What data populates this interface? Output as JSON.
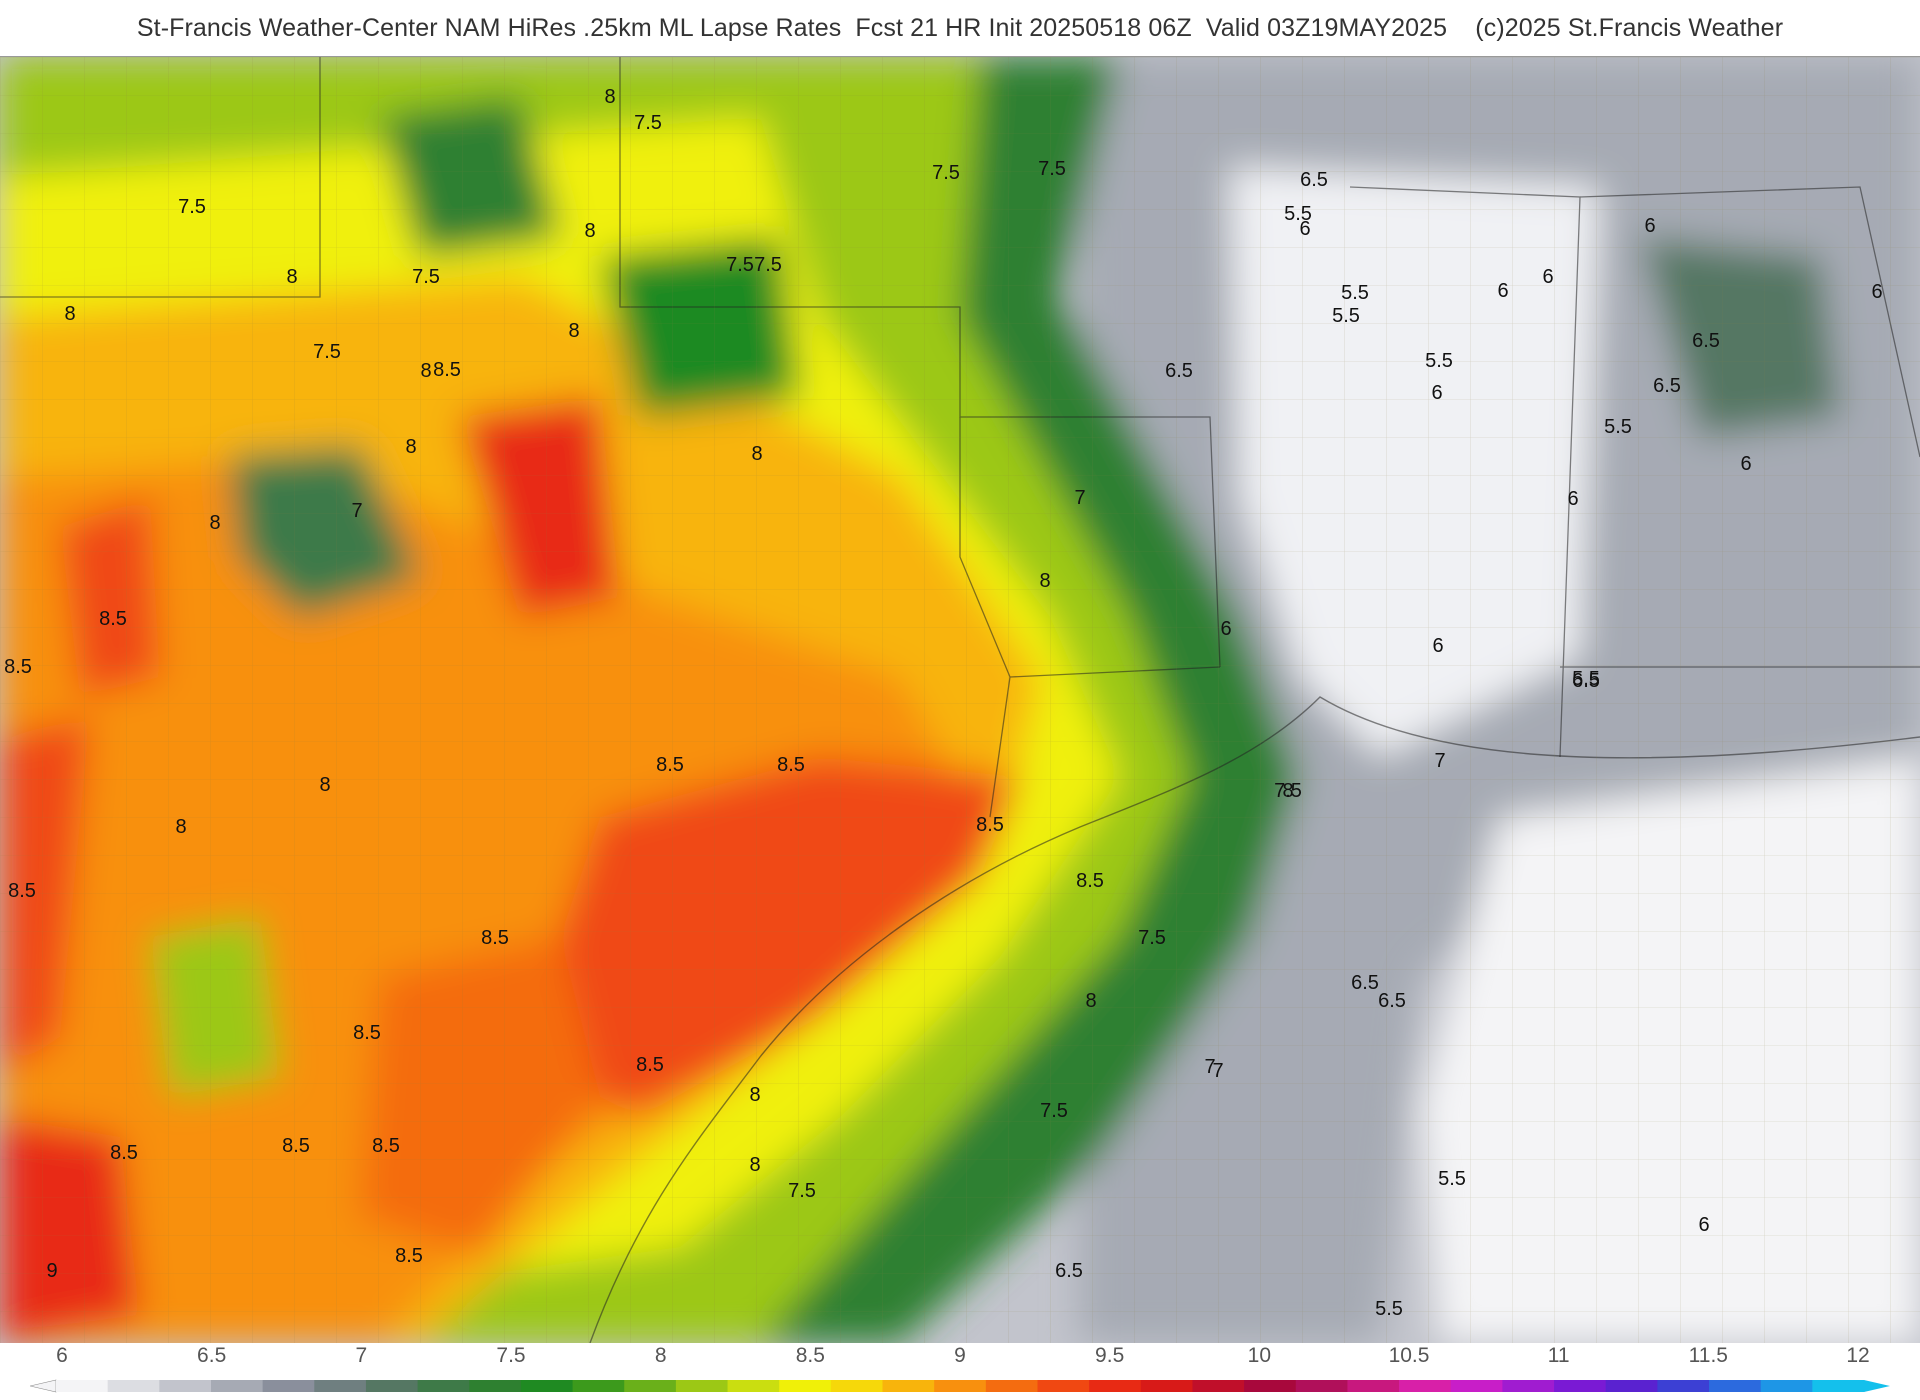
{
  "header": {
    "title": "St-Francis Weather-Center NAM HiRes .25km ML Lapse Rates  Fcst 21 HR Init 20250518 06Z  Valid 03Z19MAY2025    (c)2025 St.Francis Weather"
  },
  "map": {
    "contour_labels": [
      "8",
      "7.5",
      "7.5",
      "8",
      "7.5",
      "7.5",
      "7.5",
      "8",
      "7.5",
      "7.5",
      "8",
      "7.5",
      "8",
      "8.5",
      "8",
      "8",
      "7",
      "8",
      "8",
      "8.5",
      "8.5",
      "8",
      "8",
      "8.5",
      "8.5",
      "8",
      "8.5",
      "8.5",
      "8.5",
      "8",
      "7.5",
      "8.5",
      "8.5",
      "8.5",
      "8",
      "8.5",
      "8.5",
      "8.5",
      "8.5",
      "9",
      "7.5",
      "8",
      "6.5",
      "7",
      "7.5",
      "7",
      "6.5",
      "6.5",
      "6",
      "5.5",
      "6",
      "6.5",
      "5.5",
      "5.5",
      "6",
      "5.5",
      "6",
      "6",
      "6.5",
      "6.5",
      "6",
      "5.5",
      "6",
      "6",
      "6.5",
      "7",
      "6",
      "6.5",
      "5.5",
      "6",
      "5.5",
      "7.5",
      "7",
      "6",
      "5.5",
      "8"
    ]
  },
  "colorbar": {
    "ticks": [
      "6",
      "6.5",
      "7",
      "7.5",
      "8",
      "8.5",
      "9",
      "9.5",
      "10",
      "10.5",
      "11",
      "11.5",
      "12"
    ],
    "colors": [
      "#f4f4f6",
      "#dcdde2",
      "#c2c4cc",
      "#a6aab4",
      "#8a8f9c",
      "#6f7f80",
      "#557763",
      "#3e7a48",
      "#2e8030",
      "#1f8a22",
      "#3c9a1c",
      "#6ab01a",
      "#9cc815",
      "#cade10",
      "#f0f008",
      "#f6d80a",
      "#f8b40c",
      "#f8900e",
      "#f46c10",
      "#f04812",
      "#e82a14",
      "#d81a18",
      "#c00f2a",
      "#a8083c",
      "#b0105a",
      "#c8187e",
      "#d820a8",
      "#c81ec8",
      "#a01cd0",
      "#7a1ad4",
      "#5a22d0",
      "#3c40d4",
      "#2c6ade",
      "#1e96e6",
      "#14c0ec"
    ]
  }
}
